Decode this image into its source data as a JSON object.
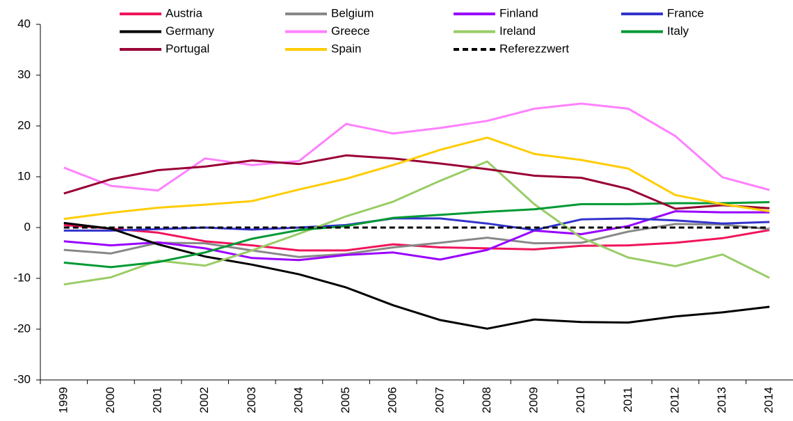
{
  "chart_data": {
    "type": "line",
    "categories": [
      "1999",
      "2000",
      "2001",
      "2002",
      "2003",
      "2004",
      "2005",
      "2006",
      "2007",
      "2008",
      "2009",
      "2010",
      "2011",
      "2012",
      "2013",
      "2014"
    ],
    "ylim": [
      -30,
      40
    ],
    "yticks": [
      -30,
      -20,
      -10,
      0,
      10,
      20,
      30,
      40
    ],
    "grid": false,
    "legend": "top",
    "series": [
      {
        "name": "Austria",
        "color": "#f0145a",
        "values": [
          0.5,
          -0.2,
          -1,
          -2.7,
          -3.5,
          -4.5,
          -4.5,
          -3.3,
          -3.9,
          -4.1,
          -4.3,
          -3.6,
          -3.5,
          -3,
          -2.1,
          -0.5
        ]
      },
      {
        "name": "Belgium",
        "color": "#888888",
        "values": [
          -4.4,
          -5.1,
          -3,
          -3.1,
          -4.5,
          -5.8,
          -5.2,
          -3.9,
          -3,
          -2,
          -3.1,
          -3,
          -0.8,
          0.7,
          0.6,
          -0.3
        ]
      },
      {
        "name": "Finland",
        "color": "#9900ff",
        "values": [
          -2.7,
          -3.5,
          -2.9,
          -4.1,
          -6,
          -6.4,
          -5.4,
          -4.9,
          -6.3,
          -4.4,
          -0.6,
          -1.3,
          0.3,
          3.2,
          3,
          3
        ]
      },
      {
        "name": "France",
        "color": "#3333cc",
        "values": [
          -0.6,
          -0.6,
          -0.3,
          0,
          -0.4,
          0,
          0.5,
          1.8,
          1.8,
          0.8,
          -0.5,
          1.6,
          1.8,
          1.4,
          0.8,
          1.1
        ]
      },
      {
        "name": "Germany",
        "color": "#000000",
        "values": [
          0.9,
          -0.2,
          -3.3,
          -5.7,
          -7.3,
          -9.2,
          -11.8,
          -15.3,
          -18.2,
          -19.9,
          -18.1,
          -18.6,
          -18.7,
          -17.5,
          -16.7,
          -15.6
        ]
      },
      {
        "name": "Greece",
        "color": "#ff80ff",
        "values": [
          11.8,
          8.2,
          7.3,
          13.6,
          12.3,
          13.1,
          20.4,
          18.5,
          19.6,
          21,
          23.4,
          24.4,
          23.4,
          18,
          9.9,
          7.4
        ]
      },
      {
        "name": "Ireland",
        "color": "#99cc66",
        "values": [
          -11.2,
          -9.8,
          -6.5,
          -7.5,
          -4.5,
          -1.2,
          2.2,
          5.1,
          9.2,
          13,
          4.6,
          -2,
          -5.9,
          -7.6,
          -5.3,
          -9.9
        ]
      },
      {
        "name": "Italy",
        "color": "#009933",
        "values": [
          -6.9,
          -7.8,
          -6.8,
          -4.9,
          -2.2,
          -0.5,
          0.3,
          1.9,
          2.5,
          3.1,
          3.6,
          4.6,
          4.6,
          4.8,
          4.8,
          5
        ]
      },
      {
        "name": "Portugal",
        "color": "#990033",
        "values": [
          6.7,
          9.5,
          11.3,
          12,
          13.2,
          12.5,
          14.2,
          13.6,
          12.6,
          11.5,
          10.2,
          9.8,
          7.6,
          3.7,
          4.4,
          3.8
        ]
      },
      {
        "name": "Spain",
        "color": "#ffcc00",
        "values": [
          1.7,
          2.9,
          3.9,
          4.5,
          5.2,
          7.5,
          9.6,
          12.3,
          15.3,
          17.7,
          14.5,
          13.3,
          11.6,
          6.4,
          4.6,
          3.2
        ]
      },
      {
        "name": "Referezzwert",
        "color": "#000000",
        "dashed": true,
        "values": [
          0,
          0,
          0,
          0,
          0,
          0,
          0,
          0,
          0,
          0,
          0,
          0,
          0,
          0,
          0,
          0
        ]
      }
    ]
  }
}
